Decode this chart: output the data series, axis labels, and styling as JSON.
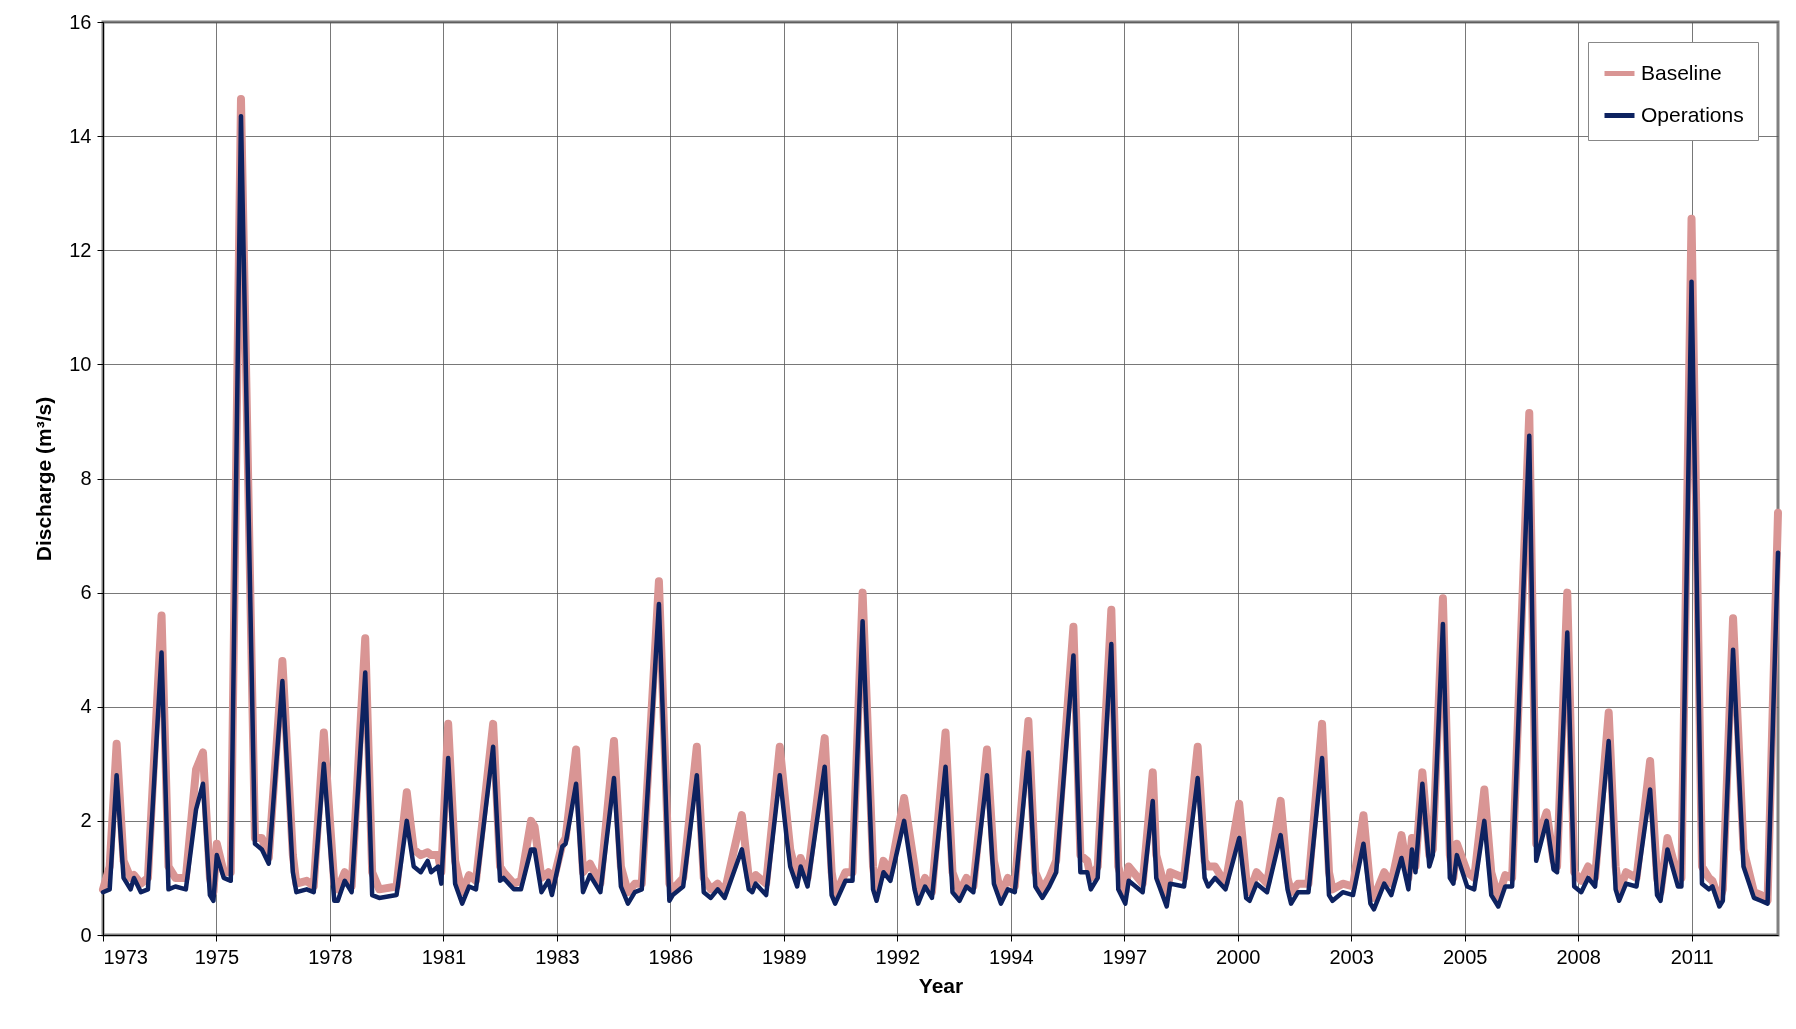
{
  "chart_data": {
    "type": "line",
    "xlabel": "Year",
    "ylabel": "Discharge (m³/s)",
    "x": [
      "1973-01",
      "1973-03",
      "1973-05",
      "1973-07",
      "1973-09",
      "1973-10",
      "1973-12",
      "1974-02",
      "1974-06",
      "1974-08",
      "1974-10",
      "1975-01",
      "1975-04",
      "1975-06",
      "1975-08",
      "1975-09",
      "1975-10",
      "1975-12",
      "1976-02",
      "1976-05",
      "1976-09",
      "1976-11",
      "1977-01",
      "1977-05",
      "1977-08",
      "1977-09",
      "1977-12",
      "1978-02",
      "1978-05",
      "1978-08",
      "1978-09",
      "1978-11",
      "1979-01",
      "1979-05",
      "1979-07",
      "1979-09",
      "1980-02",
      "1980-05",
      "1980-07",
      "1980-09",
      "1980-11",
      "1980-12",
      "1981-02",
      "1981-03",
      "1981-05",
      "1981-07",
      "1981-09",
      "1981-11",
      "1982-01",
      "1982-06",
      "1982-08",
      "1982-09",
      "1982-12",
      "1983-02",
      "1983-05",
      "1983-06",
      "1983-08",
      "1983-10",
      "1983-11",
      "1984-02",
      "1984-03",
      "1984-06",
      "1984-08",
      "1984-10",
      "1985-01",
      "1985-05",
      "1985-07",
      "1985-09",
      "1985-11",
      "1986-01",
      "1986-06",
      "1986-09",
      "1986-10",
      "1987-01",
      "1987-05",
      "1987-07",
      "1987-09",
      "1987-11",
      "1988-01",
      "1988-06",
      "1988-08",
      "1988-09",
      "1988-10",
      "1989-01",
      "1989-05",
      "1989-07",
      "1989-08",
      "1989-10",
      "1989-11",
      "1990-01",
      "1990-06",
      "1990-08",
      "1990-09",
      "1990-12",
      "1991-02",
      "1991-05",
      "1991-08",
      "1991-09",
      "1991-11",
      "1992-01",
      "1992-05",
      "1992-08",
      "1992-09",
      "1992-11",
      "1993-01",
      "1993-05",
      "1993-07",
      "1993-09",
      "1993-11",
      "1994-01",
      "1994-05",
      "1994-07",
      "1994-09",
      "1994-11",
      "1995-01",
      "1995-05",
      "1995-07",
      "1995-09",
      "1995-11",
      "1996-01",
      "1996-06",
      "1996-08",
      "1996-10",
      "1996-11",
      "1997-01",
      "1997-05",
      "1997-07",
      "1997-09",
      "1997-10",
      "1998-02",
      "1998-05",
      "1998-06",
      "1998-09",
      "1998-10",
      "1999-02",
      "1999-06",
      "1999-08",
      "1999-09",
      "1999-11",
      "2000-02",
      "2000-06",
      "2000-08",
      "2000-09",
      "2000-11",
      "2001-02",
      "2001-06",
      "2001-08",
      "2001-09",
      "2001-11",
      "2002-02",
      "2002-06",
      "2002-08",
      "2002-09",
      "2002-12",
      "2003-03",
      "2003-06",
      "2003-08",
      "2003-09",
      "2003-12",
      "2004-02",
      "2004-05",
      "2004-07",
      "2004-08",
      "2004-09",
      "2004-11",
      "2005-01",
      "2005-02",
      "2005-05",
      "2005-07",
      "2005-08",
      "2005-09",
      "2005-12",
      "2006-02",
      "2006-05",
      "2006-07",
      "2006-09",
      "2006-11",
      "2007-01",
      "2007-06",
      "2007-08",
      "2007-11",
      "2008-01",
      "2008-02",
      "2008-05",
      "2008-07",
      "2008-09",
      "2008-11",
      "2009-01",
      "2009-05",
      "2009-07",
      "2009-08",
      "2009-10",
      "2010-01",
      "2010-05",
      "2010-07",
      "2010-08",
      "2010-10",
      "2011-01",
      "2011-02",
      "2011-05",
      "2011-08",
      "2011-10",
      "2011-11",
      "2012-01",
      "2012-02",
      "2012-05",
      "2012-08",
      "2012-11",
      "2013-01",
      "2013-03",
      "2013-06"
    ],
    "series": [
      {
        "name": "Baseline",
        "color": "#d99594",
        "values": [
          0.8,
          1.2,
          3.35,
          1.3,
          1.0,
          1.05,
          0.9,
          1.0,
          5.6,
          1.2,
          1.0,
          1.0,
          2.9,
          3.2,
          1.0,
          0.75,
          1.6,
          1.1,
          1.1,
          14.65,
          1.7,
          1.7,
          1.35,
          4.8,
          1.4,
          0.9,
          0.95,
          0.85,
          3.55,
          0.9,
          0.8,
          1.1,
          0.85,
          5.2,
          1.1,
          0.8,
          0.85,
          2.5,
          1.5,
          1.4,
          1.45,
          1.4,
          1.4,
          1.1,
          3.7,
          1.3,
          0.75,
          1.05,
          0.95,
          3.7,
          1.2,
          1.1,
          0.9,
          0.95,
          2.0,
          1.9,
          1.0,
          1.1,
          0.85,
          1.6,
          1.7,
          3.25,
          1.1,
          1.25,
          0.9,
          3.4,
          1.2,
          0.75,
          0.9,
          0.9,
          6.2,
          0.9,
          0.8,
          1.0,
          3.3,
          1.0,
          0.8,
          0.9,
          0.75,
          2.1,
          1.0,
          0.9,
          1.05,
          0.9,
          3.3,
          2.1,
          1.5,
          1.0,
          1.35,
          1.0,
          3.45,
          1.1,
          0.7,
          1.1,
          1.1,
          6.0,
          1.2,
          0.75,
          1.3,
          1.1,
          2.4,
          1.2,
          0.7,
          1.0,
          0.75,
          3.55,
          1.1,
          0.75,
          1.0,
          0.85,
          3.25,
          1.3,
          0.7,
          1.0,
          0.85,
          3.75,
          1.1,
          0.8,
          1.0,
          1.3,
          5.4,
          1.4,
          1.3,
          1.0,
          1.2,
          5.7,
          1.2,
          0.75,
          1.2,
          0.9,
          2.85,
          1.4,
          0.7,
          1.1,
          1.0,
          3.3,
          1.3,
          1.2,
          1.2,
          0.9,
          2.3,
          1.0,
          0.75,
          1.1,
          0.9,
          2.35,
          1.0,
          0.75,
          0.9,
          0.9,
          3.7,
          1.1,
          0.8,
          0.9,
          0.85,
          2.1,
          0.8,
          0.65,
          1.1,
          0.9,
          1.75,
          1.0,
          1.7,
          1.2,
          2.85,
          1.4,
          1.5,
          5.9,
          1.4,
          1.0,
          1.6,
          1.1,
          1.0,
          2.55,
          1.1,
          0.65,
          1.05,
          1.0,
          9.15,
          1.6,
          2.15,
          1.3,
          1.2,
          6.0,
          1.1,
          0.95,
          1.2,
          1.0,
          3.9,
          1.2,
          0.75,
          1.1,
          1.0,
          3.05,
          1.0,
          0.75,
          1.7,
          1.0,
          1.0,
          12.55,
          1.2,
          1.0,
          0.95,
          0.6,
          0.8,
          5.55,
          1.5,
          0.75,
          0.7,
          0.6,
          7.4
        ]
      },
      {
        "name": "Operations",
        "color": "#0d2260",
        "values": [
          0.75,
          0.8,
          2.8,
          1.0,
          0.8,
          1.0,
          0.75,
          0.8,
          4.95,
          0.8,
          0.85,
          0.8,
          2.2,
          2.65,
          0.7,
          0.6,
          1.4,
          1.0,
          0.95,
          14.35,
          1.6,
          1.5,
          1.25,
          4.45,
          1.1,
          0.75,
          0.8,
          0.75,
          3.0,
          0.6,
          0.6,
          0.95,
          0.75,
          4.6,
          0.7,
          0.65,
          0.7,
          2.0,
          1.2,
          1.1,
          1.3,
          1.1,
          1.2,
          0.9,
          3.1,
          0.9,
          0.55,
          0.85,
          0.8,
          3.3,
          0.95,
          1.0,
          0.8,
          0.8,
          1.5,
          1.5,
          0.75,
          0.95,
          0.7,
          1.55,
          1.6,
          2.65,
          0.75,
          1.05,
          0.75,
          2.75,
          0.85,
          0.55,
          0.75,
          0.8,
          5.8,
          0.6,
          0.7,
          0.85,
          2.8,
          0.75,
          0.65,
          0.8,
          0.65,
          1.5,
          0.8,
          0.75,
          0.9,
          0.7,
          2.8,
          1.7,
          1.2,
          0.85,
          1.2,
          0.85,
          2.95,
          0.7,
          0.55,
          0.95,
          0.95,
          5.5,
          0.8,
          0.6,
          1.1,
          0.95,
          2.0,
          0.8,
          0.55,
          0.85,
          0.65,
          2.95,
          0.75,
          0.6,
          0.85,
          0.75,
          2.8,
          0.9,
          0.55,
          0.8,
          0.75,
          3.2,
          0.85,
          0.65,
          0.85,
          1.1,
          4.9,
          1.1,
          1.1,
          0.8,
          1.0,
          5.1,
          0.8,
          0.55,
          0.95,
          0.75,
          2.35,
          1.0,
          0.5,
          0.9,
          0.85,
          2.75,
          1.0,
          0.85,
          1.0,
          0.8,
          1.7,
          0.65,
          0.6,
          0.9,
          0.75,
          1.75,
          0.8,
          0.55,
          0.75,
          0.75,
          3.1,
          0.7,
          0.6,
          0.75,
          0.7,
          1.6,
          0.55,
          0.45,
          0.9,
          0.7,
          1.35,
          0.8,
          1.5,
          1.1,
          2.65,
          1.2,
          1.4,
          5.45,
          1.0,
          0.9,
          1.4,
          0.85,
          0.8,
          2.0,
          0.7,
          0.5,
          0.85,
          0.85,
          8.75,
          1.3,
          2.0,
          1.15,
          1.1,
          5.3,
          0.85,
          0.75,
          1.0,
          0.85,
          3.4,
          0.8,
          0.6,
          0.9,
          0.85,
          2.55,
          0.7,
          0.6,
          1.5,
          0.85,
          0.85,
          11.45,
          0.9,
          0.8,
          0.85,
          0.5,
          0.6,
          5.0,
          1.2,
          0.65,
          0.6,
          0.55,
          6.7
        ]
      }
    ],
    "xlim": [
      "1973-01-01",
      "2013-06-01"
    ],
    "xticks": [
      {
        "value": "1973-01-01",
        "label": "1973"
      },
      {
        "value": "1975-09-28",
        "label": "1975"
      },
      {
        "value": "1978-06-24",
        "label": "1978"
      },
      {
        "value": "1981-03-20",
        "label": "1981"
      },
      {
        "value": "1983-12-15",
        "label": "1983"
      },
      {
        "value": "1986-09-10",
        "label": "1986"
      },
      {
        "value": "1989-06-06",
        "label": "1989"
      },
      {
        "value": "1992-03-02",
        "label": "1992"
      },
      {
        "value": "1994-11-27",
        "label": "1994"
      },
      {
        "value": "1997-08-23",
        "label": "1997"
      },
      {
        "value": "2000-05-19",
        "label": "2000"
      },
      {
        "value": "2003-02-13",
        "label": "2003"
      },
      {
        "value": "2005-11-09",
        "label": "2005"
      },
      {
        "value": "2008-08-05",
        "label": "2008"
      },
      {
        "value": "2011-05-02",
        "label": "2011"
      }
    ],
    "ylim": [
      0,
      16
    ],
    "yticks": [
      0,
      2,
      4,
      6,
      8,
      10,
      12,
      14,
      16
    ],
    "grid": true,
    "legend": "top right",
    "line_style": "solid",
    "marker": "none"
  }
}
